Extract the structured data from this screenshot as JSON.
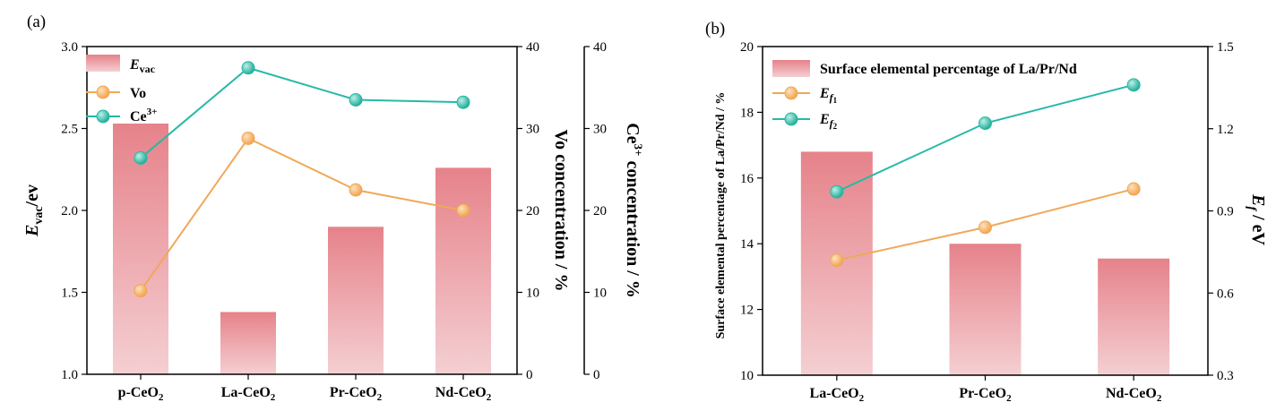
{
  "chart_data": [
    {
      "panel_label": "(a)",
      "type": "bar",
      "categories": [
        "p-CeO",
        "La-CeO",
        "Pr-CeO",
        "Nd-CeO"
      ],
      "category_subscript": "2",
      "bar_series": {
        "name": "E",
        "name_sub": "vac",
        "values": [
          2.53,
          1.38,
          1.9,
          2.26
        ],
        "color": "#e8868b"
      },
      "line_series": [
        {
          "name": "Vo",
          "name_sup": "",
          "axis": "right1",
          "values": [
            10.2,
            28.8,
            22.5,
            20.0
          ],
          "color": "#f0a858",
          "marker": "#f4b36a"
        },
        {
          "name": "Ce",
          "name_sup": "3+",
          "axis": "right2",
          "values": [
            26.4,
            37.4,
            33.5,
            33.2
          ],
          "color": "#26b9a6",
          "marker": "#2ec4b0"
        }
      ],
      "y_left": {
        "label_main": "E",
        "label_sub": "vac",
        "label_tail": "/ev",
        "min": 1.0,
        "max": 3.0,
        "ticks": [
          "1.0",
          "1.5",
          "2.0",
          "2.5",
          "3.0"
        ]
      },
      "y_right1": {
        "label": "Vo concentration / %",
        "min": 0,
        "max": 40,
        "ticks": [
          "0",
          "10",
          "20",
          "30",
          "40"
        ]
      },
      "y_right2": {
        "label_head": "Ce",
        "label_sup": "3+",
        "label_tail": " concentration / %",
        "min": 0,
        "max": 40,
        "ticks": [
          "0",
          "10",
          "20",
          "30",
          "40"
        ]
      },
      "legend_placement": "top-left"
    },
    {
      "panel_label": "(b)",
      "type": "bar",
      "categories": [
        "La-CeO",
        "Pr-CeO",
        "Nd-CeO"
      ],
      "category_subscript": "2",
      "bar_series": {
        "name": "Surface elemental percentage of La/Pr/Nd",
        "values": [
          16.8,
          14.0,
          13.55
        ],
        "color": "#e8868b"
      },
      "line_series": [
        {
          "name": "E",
          "name_sub": "f",
          "name_subsub": "1",
          "axis": "right",
          "values": [
            0.72,
            0.84,
            0.98
          ],
          "color": "#f0a858",
          "marker": "#f4b36a"
        },
        {
          "name": "E",
          "name_sub": "f",
          "name_subsub": "2",
          "axis": "right",
          "values": [
            0.97,
            1.22,
            1.36
          ],
          "color": "#26b9a6",
          "marker": "#2ec4b0"
        }
      ],
      "y_left": {
        "label": "Surface elemental percentage of La/Pr/Nd / %",
        "min": 10,
        "max": 20,
        "ticks": [
          "10",
          "12",
          "14",
          "16",
          "18",
          "20"
        ]
      },
      "y_right": {
        "label_main": "E",
        "label_sub": "f",
        "label_tail": " / eV",
        "min": 0.3,
        "max": 1.5,
        "ticks": [
          "0.3",
          "0.6",
          "0.9",
          "1.2",
          "1.5"
        ]
      },
      "legend_placement": "top-left"
    }
  ]
}
